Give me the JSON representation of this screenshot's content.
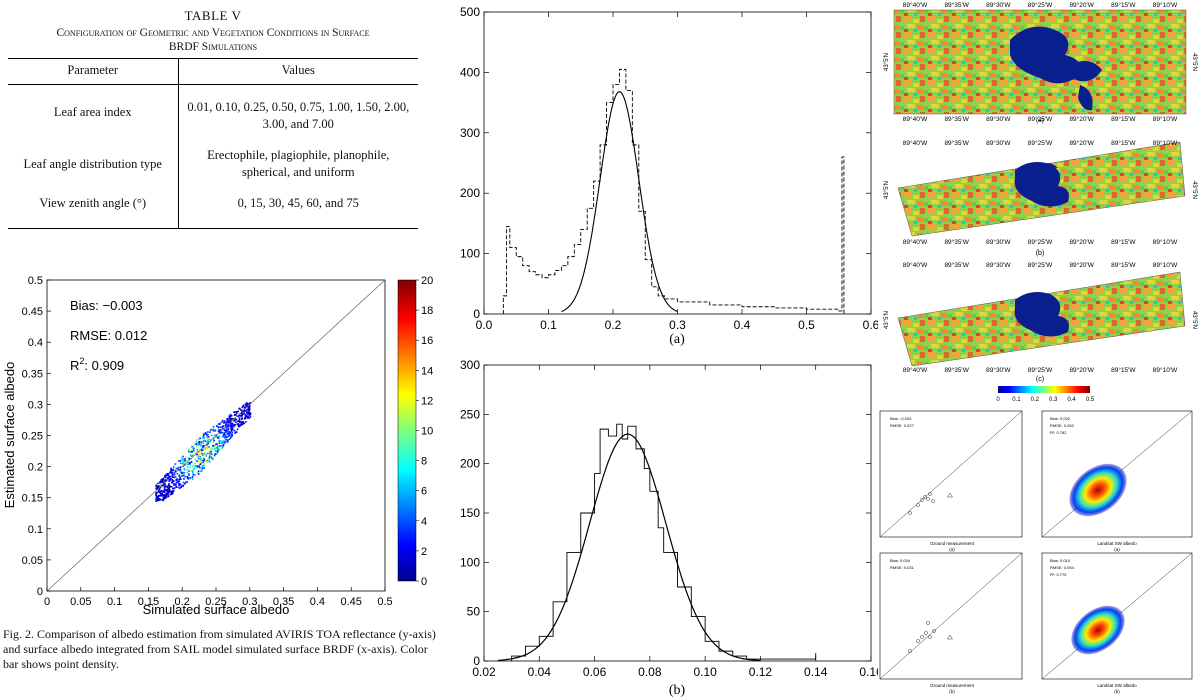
{
  "table": {
    "title": "TABLE V",
    "caption_line1": "Configuration of Geometric and Vegetation Conditions in Surface",
    "caption_line2": "BRDF Simulations",
    "headers": [
      "Parameter",
      "Values"
    ],
    "rows": [
      {
        "param": "Leaf area index",
        "values": "0.01, 0.10, 0.25, 0.50, 0.75, 1.00, 1.50, 2.00, 3.00, and 7.00"
      },
      {
        "param": "Leaf angle distribution type",
        "values": "Erectophile, plagiophile, planophile, spherical, and uniform"
      },
      {
        "param": "View zenith angle (°)",
        "values": "0, 15, 30, 45, 60, and 75"
      }
    ]
  },
  "fig2": {
    "caption": "Fig. 2. Comparison of albedo estimation from simulated AVIRIS TOA reflectance (y-axis) and surface albedo integrated from SAIL model simulated surface BRDF (x-axis). Color bar shows point density.",
    "bias": "Bias: −0.003",
    "rmse": "RMSE: 0.012",
    "r2_prefix": "R",
    "r2_sup": "2",
    "r2_value": ": 0.909",
    "colorbar_ticks": [
      "0",
      "2",
      "4",
      "6",
      "8",
      "10",
      "12",
      "14",
      "16",
      "18",
      "20"
    ]
  },
  "histograms": {
    "label_a": "(a)",
    "label_b": "(b)"
  },
  "maps": {
    "label_a": "(a)",
    "label_b": "(b)",
    "label_c": "(c)",
    "lon_ticks": [
      "89°40'W",
      "89°35'W",
      "89°30'W",
      "89°25'W",
      "89°20'W",
      "89°15'W",
      "89°10'W"
    ],
    "lat_tick": "43°5'N",
    "colorbar_ticks": [
      "0",
      "0.1",
      "0.2",
      "0.3",
      "0.4",
      "0.5"
    ]
  },
  "validation": {
    "top_left": {
      "bias": "Bias: -0.003",
      "rmse": "RMSE: 0.027",
      "xlabel": "Ground measurement",
      "label": "(a)"
    },
    "top_right": {
      "bias": "Bias: 0.002",
      "rmse": "RMSE: 0.052",
      "r2": "R²: 0.782",
      "xlabel": "Landsat SW albedo",
      "label": "(a)"
    },
    "bottom_left": {
      "bias": "Bias: 0.004",
      "rmse": "RMSE: 0.031",
      "xlabel": "Ground measurement",
      "label": "(b)"
    },
    "bottom_right": {
      "bias": "Bias: 0.010",
      "rmse": "RMSE: 0.054",
      "r2": "R²: 0.775",
      "xlabel": "Landsat SW albedo",
      "label": "(b)"
    }
  },
  "chart_data": [
    {
      "id": "fig2-scatter",
      "type": "scatter",
      "title": "",
      "xlabel": "Simulated surface albedo",
      "ylabel": "Estimated surface albedo",
      "xlim": [
        0,
        0.5
      ],
      "ylim": [
        0,
        0.5
      ],
      "x_ticks": [
        "0",
        "0.05",
        "0.1",
        "0.15",
        "0.2",
        "0.25",
        "0.3",
        "0.35",
        "0.4",
        "0.45",
        "0.5"
      ],
      "y_ticks": [
        "0",
        "0.05",
        "0.1",
        "0.15",
        "0.2",
        "0.25",
        "0.3",
        "0.35",
        "0.4",
        "0.45",
        "0.5"
      ],
      "colorbar_range": [
        0,
        20
      ],
      "one_to_one_line": true,
      "cluster": {
        "x_range": [
          0.16,
          0.3
        ],
        "y_range": [
          0.145,
          0.305
        ],
        "center": [
          0.23,
          0.22
        ]
      }
    },
    {
      "id": "histogram-a",
      "type": "line",
      "xlim": [
        0,
        0.6
      ],
      "ylim": [
        0,
        500
      ],
      "x_ticks": [
        "0.0",
        "0.1",
        "0.2",
        "0.3",
        "0.4",
        "0.5",
        "0.6"
      ],
      "y_ticks": [
        "0",
        "100",
        "200",
        "300",
        "400",
        "500"
      ],
      "series": [
        {
          "style": "dashed-step",
          "x": [
            0.03,
            0.035,
            0.04,
            0.05,
            0.06,
            0.07,
            0.08,
            0.09,
            0.1,
            0.11,
            0.12,
            0.13,
            0.14,
            0.15,
            0.16,
            0.17,
            0.18,
            0.19,
            0.2,
            0.21,
            0.22,
            0.23,
            0.24,
            0.25,
            0.26,
            0.27,
            0.28,
            0.3,
            0.35,
            0.4,
            0.45,
            0.5,
            0.55,
            0.555,
            0.558
          ],
          "y": [
            30,
            145,
            110,
            95,
            80,
            70,
            65,
            60,
            65,
            72,
            80,
            95,
            115,
            140,
            175,
            220,
            280,
            350,
            380,
            405,
            370,
            280,
            170,
            90,
            45,
            30,
            25,
            20,
            15,
            12,
            10,
            8,
            5,
            260,
            0
          ]
        },
        {
          "style": "solid-fit",
          "mean": 0.21,
          "sd": 0.03,
          "peak": 368,
          "x_range": [
            0.12,
            0.3
          ]
        }
      ]
    },
    {
      "id": "histogram-b",
      "type": "line",
      "xlim": [
        0.02,
        0.16
      ],
      "ylim": [
        0,
        300
      ],
      "x_ticks": [
        "0.02",
        "0.04",
        "0.06",
        "0.08",
        "0.10",
        "0.12",
        "0.14",
        "0.16"
      ],
      "y_ticks": [
        "0",
        "50",
        "100",
        "150",
        "200",
        "250",
        "300"
      ],
      "series": [
        {
          "style": "step",
          "x": [
            0.03,
            0.035,
            0.04,
            0.045,
            0.05,
            0.055,
            0.06,
            0.062,
            0.065,
            0.068,
            0.07,
            0.072,
            0.075,
            0.078,
            0.08,
            0.083,
            0.085,
            0.09,
            0.095,
            0.1,
            0.105,
            0.11,
            0.115,
            0.14
          ],
          "y": [
            5,
            15,
            25,
            60,
            110,
            150,
            190,
            235,
            228,
            240,
            225,
            238,
            215,
            195,
            172,
            135,
            110,
            75,
            45,
            20,
            10,
            5,
            2,
            8
          ]
        },
        {
          "style": "solid-fit",
          "mean": 0.072,
          "sd": 0.0138,
          "peak": 230,
          "x_range": [
            0.025,
            0.12
          ]
        }
      ]
    }
  ]
}
